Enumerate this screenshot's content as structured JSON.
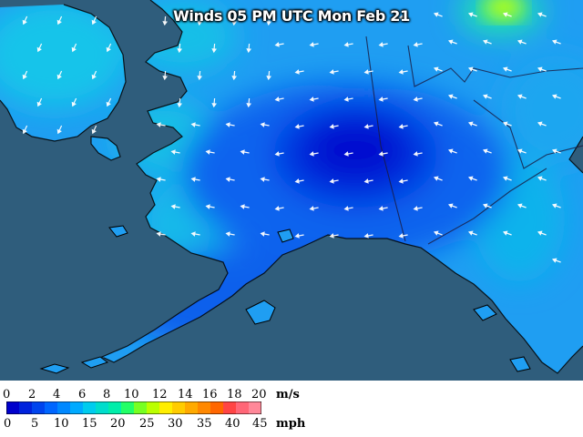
{
  "map": {
    "title": "Winds 05 PM UTC Mon Feb 21"
  },
  "legend": {
    "ms_label": "m/s",
    "mph_label": "mph",
    "ms_ticks": [
      "0",
      "2",
      "4",
      "6",
      "8",
      "10",
      "12",
      "14",
      "16",
      "18",
      "20"
    ],
    "mph_ticks": [
      "0",
      "5",
      "10",
      "15",
      "20",
      "25",
      "30",
      "35",
      "40",
      "45"
    ],
    "colors": [
      "#0000cc",
      "#0022dd",
      "#0044ee",
      "#0066ff",
      "#0088ff",
      "#00aaff",
      "#00ccee",
      "#00ddcc",
      "#00eeaa",
      "#22ff66",
      "#77ff22",
      "#bbff00",
      "#ffee00",
      "#ffcc00",
      "#ffaa00",
      "#ff8800",
      "#ff6600",
      "#ff4444",
      "#ff6677",
      "#ff8899"
    ]
  }
}
